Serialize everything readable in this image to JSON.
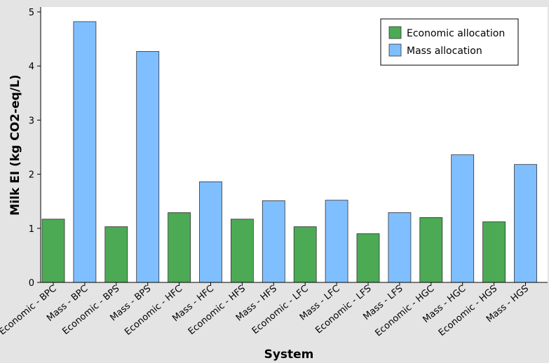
{
  "chart_data": {
    "type": "bar",
    "title": "",
    "xlabel": "System",
    "ylabel": "Milk EI (kg CO2-eq/L)",
    "ylim": [
      0,
      5
    ],
    "yticks": [
      0,
      1,
      2,
      3,
      4,
      5
    ],
    "categories": [
      "Economic - BPC",
      "Mass - BPC",
      "Economic - BPS",
      "Mass - BPS",
      "Economic - HFC",
      "Mass - HFC",
      "Economic - HFS",
      "Mass - HFS",
      "Economic - LFC",
      "Mass - LFC",
      "Economic - LFS",
      "Mass - LFS",
      "Economic - HGC",
      "Mass - HGC",
      "Economic - HGS",
      "Mass - HGS"
    ],
    "values": [
      1.17,
      4.82,
      1.03,
      4.27,
      1.29,
      1.86,
      1.17,
      1.51,
      1.03,
      1.52,
      0.9,
      1.29,
      1.2,
      2.36,
      1.12,
      2.18
    ],
    "bar_series": [
      "Economic allocation",
      "Mass allocation",
      "Economic allocation",
      "Mass allocation",
      "Economic allocation",
      "Mass allocation",
      "Economic allocation",
      "Mass allocation",
      "Economic allocation",
      "Mass allocation",
      "Economic allocation",
      "Mass allocation",
      "Economic allocation",
      "Mass allocation",
      "Economic allocation",
      "Mass allocation"
    ],
    "legend": {
      "position": "top-right",
      "entries": [
        {
          "name": "Economic allocation",
          "color": "#4caa55"
        },
        {
          "name": "Mass allocation",
          "color": "#7fbfff"
        }
      ]
    },
    "grid": false
  }
}
